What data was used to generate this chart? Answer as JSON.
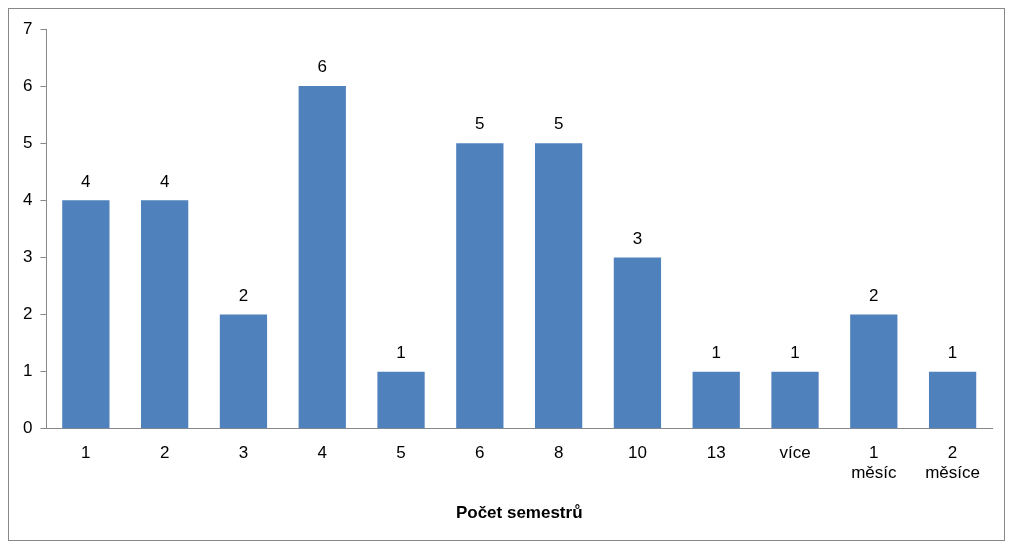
{
  "chart_data": {
    "type": "bar",
    "xlabel": "Počet semestrů",
    "categories": [
      "1",
      "2",
      "3",
      "4",
      "5",
      "6",
      "8",
      "10",
      "13",
      "více",
      "1 měsíc",
      "2 měsíce"
    ],
    "values": [
      4,
      4,
      2,
      6,
      1,
      5,
      5,
      3,
      1,
      1,
      2,
      1
    ],
    "color": "#4f81bd",
    "ylim": [
      0,
      7
    ],
    "yticks": [
      0,
      1,
      2,
      3,
      4,
      5,
      6,
      7
    ],
    "grid": false,
    "legend": false,
    "data_labels": true
  }
}
